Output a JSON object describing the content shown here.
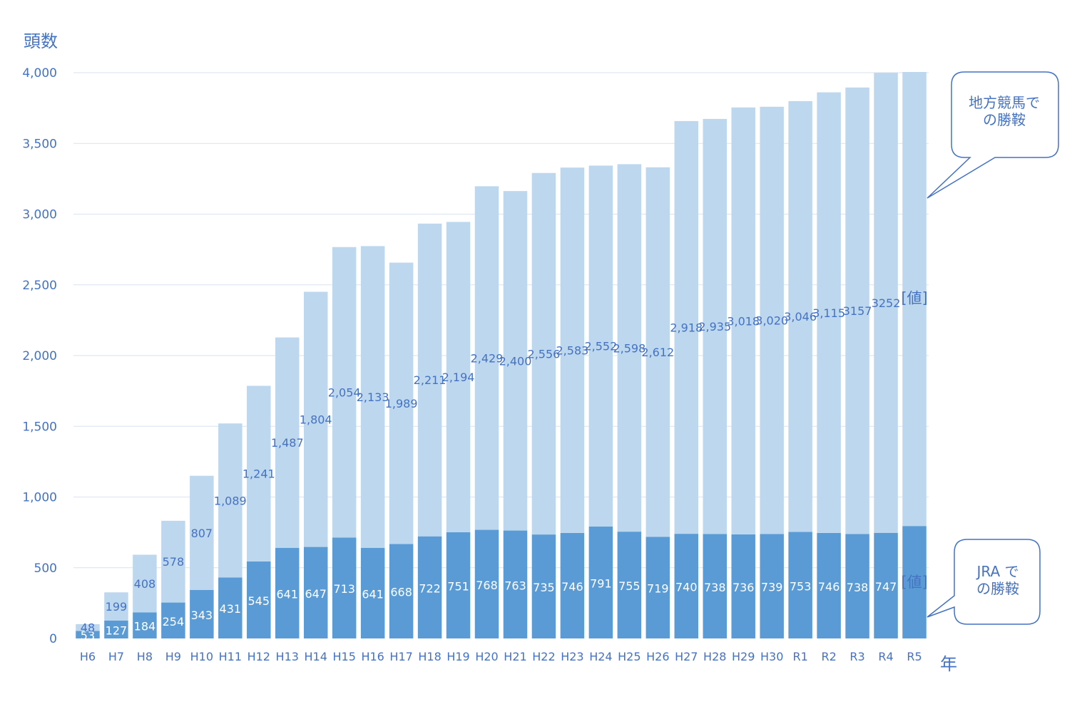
{
  "chart_data": {
    "type": "bar",
    "stacked": true,
    "ylabel": "頭数",
    "xlabel": "年",
    "ylim": [
      0,
      4000
    ],
    "yticks": [
      0,
      500,
      1000,
      1500,
      2000,
      2500,
      3000,
      3500,
      4000
    ],
    "ytick_labels": [
      "0",
      "500",
      "1,000",
      "1,500",
      "2,000",
      "2,500",
      "3,000",
      "3,500",
      "4,000"
    ],
    "grid": true,
    "categories": [
      "H6",
      "H7",
      "H8",
      "H9",
      "H10",
      "H11",
      "H12",
      "H13",
      "H14",
      "H15",
      "H16",
      "H17",
      "H18",
      "H19",
      "H20",
      "H21",
      "H22",
      "H23",
      "H24",
      "H25",
      "H26",
      "H27",
      "H28",
      "H29",
      "H30",
      "R1",
      "R2",
      "R3",
      "R4",
      "R5"
    ],
    "series": [
      {
        "name": "JRA での勝鞍",
        "color": "#5B9BD5",
        "values": [
          53,
          127,
          184,
          254,
          343,
          431,
          545,
          641,
          647,
          713,
          641,
          668,
          722,
          751,
          768,
          763,
          735,
          746,
          791,
          755,
          719,
          740,
          738,
          736,
          739,
          753,
          746,
          738,
          747,
          795
        ],
        "labels": [
          "53",
          "127",
          "184",
          "254",
          "343",
          "431",
          "545",
          "641",
          "647",
          "713",
          "641",
          "668",
          "722",
          "751",
          "768",
          "763",
          "735",
          "746",
          "791",
          "755",
          "719",
          "740",
          "738",
          "736",
          "739",
          "753",
          "746",
          "738",
          "747",
          "[値]"
        ]
      },
      {
        "name": "地方競馬での勝鞍",
        "color": "#BDD7EE",
        "values": [
          48,
          199,
          408,
          578,
          807,
          1089,
          1241,
          1487,
          1804,
          2054,
          2133,
          1989,
          2211,
          2194,
          2429,
          2400,
          2556,
          2583,
          2552,
          2598,
          2612,
          2918,
          2935,
          3018,
          3020,
          3046,
          3115,
          3157,
          3252,
          3210
        ],
        "labels": [
          "48",
          "199",
          "408",
          "578",
          "807",
          "1,089",
          "1,241",
          "1,487",
          "1,804",
          "2,054",
          "2,133",
          "1,989",
          "2,211",
          "2,194",
          "2,429",
          "2,400",
          "2,556",
          "2,583",
          "2,552",
          "2,598",
          "2,612",
          "2,918",
          "2,935",
          "3,018",
          "3,020",
          "3,046",
          "3,115",
          "3157",
          "3252",
          "[値]"
        ]
      }
    ],
    "callouts": [
      {
        "text_line1": "地方競馬で",
        "text_line2": "の勝鞍",
        "series": "地方競馬での勝鞍"
      },
      {
        "text_line1": "JRA で",
        "text_line2": "の勝鞍",
        "series": "JRA での勝鞍"
      }
    ],
    "colors": {
      "text": "#4472C4",
      "grid": "#D9E2EE",
      "callout_border": "#4472C4"
    }
  }
}
